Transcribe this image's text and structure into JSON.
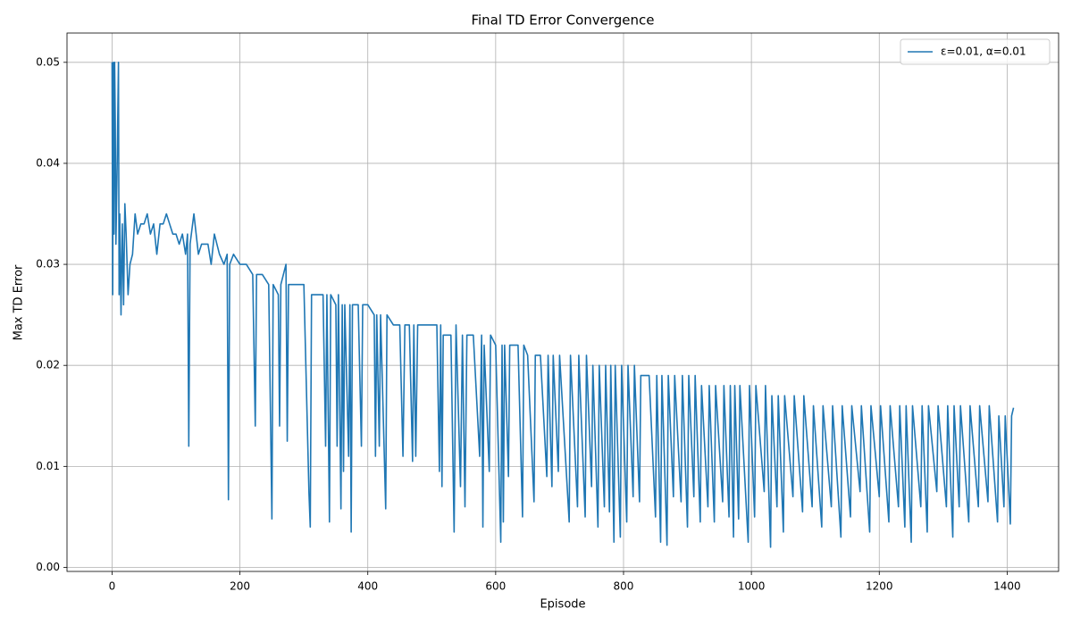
{
  "chart_data": {
    "type": "line",
    "title": "Final TD Error Convergence",
    "x_label": "Episode",
    "y_label": "Max TD Error",
    "xlim": [
      -70.5,
      1480.5
    ],
    "ylim": [
      -0.0004,
      0.0529
    ],
    "xticks": [
      0,
      200,
      400,
      600,
      800,
      1000,
      1200,
      1400
    ],
    "yticks": [
      {
        "value": 0,
        "label": "0.00"
      },
      0.01,
      0.02,
      0.03,
      0.04,
      0.05
    ],
    "grid": true,
    "legend": "upper right",
    "x": [
      0,
      1,
      2,
      3,
      4,
      5,
      6,
      8,
      10,
      11,
      12,
      14,
      16,
      18,
      20,
      22,
      25,
      28,
      32,
      36,
      40,
      45,
      50,
      55,
      60,
      65,
      70,
      75,
      80,
      85,
      90,
      95,
      100,
      105,
      110,
      115,
      118,
      120,
      122,
      128,
      135,
      140,
      150,
      155,
      160,
      168,
      175,
      180,
      182,
      184,
      190,
      200,
      210,
      220,
      224,
      226,
      235,
      245,
      250,
      252,
      260,
      262,
      264,
      272,
      274,
      276,
      285,
      295,
      300,
      308,
      310,
      312,
      320,
      330,
      334,
      336,
      340,
      342,
      350,
      352,
      354,
      358,
      360,
      362,
      364,
      370,
      372,
      374,
      376,
      385,
      390,
      392,
      400,
      410,
      412,
      414,
      418,
      420,
      428,
      430,
      440,
      450,
      455,
      458,
      465,
      470,
      472,
      475,
      478,
      490,
      500,
      508,
      512,
      514,
      516,
      518,
      530,
      535,
      538,
      545,
      548,
      552,
      555,
      565,
      575,
      578,
      580,
      582,
      590,
      592,
      600,
      608,
      610,
      612,
      614,
      620,
      622,
      635,
      642,
      644,
      650,
      660,
      662,
      670,
      680,
      682,
      688,
      690,
      698,
      700,
      715,
      717,
      728,
      730,
      740,
      742,
      750,
      752,
      760,
      762,
      770,
      772,
      778,
      780,
      785,
      787,
      795,
      797,
      805,
      807,
      815,
      817,
      825,
      827,
      840,
      850,
      852,
      858,
      860,
      868,
      870,
      878,
      880,
      890,
      892,
      900,
      902,
      910,
      912,
      920,
      922,
      932,
      934,
      942,
      944,
      955,
      957,
      965,
      967,
      972,
      974,
      980,
      982,
      995,
      997,
      1005,
      1007,
      1020,
      1022,
      1030,
      1032,
      1040,
      1042,
      1050,
      1052,
      1065,
      1067,
      1080,
      1082,
      1095,
      1097,
      1110,
      1112,
      1125,
      1127,
      1140,
      1142,
      1155,
      1157,
      1170,
      1172,
      1185,
      1187,
      1200,
      1202,
      1215,
      1217,
      1230,
      1232,
      1240,
      1242,
      1250,
      1252,
      1265,
      1267,
      1275,
      1277,
      1290,
      1292,
      1305,
      1307,
      1315,
      1317,
      1325,
      1327,
      1340,
      1342,
      1355,
      1357,
      1370,
      1372,
      1385,
      1387,
      1395,
      1397,
      1405,
      1407,
      1410
    ],
    "series": [
      {
        "name": "ε=0.01, α=0.01",
        "color": "#1f77b4",
        "values": [
          0.05,
          0.027,
          0.05,
          0.033,
          0.05,
          0.044,
          0.032,
          0.04,
          0.05,
          0.027,
          0.035,
          0.025,
          0.034,
          0.026,
          0.036,
          0.033,
          0.027,
          0.03,
          0.031,
          0.035,
          0.033,
          0.034,
          0.034,
          0.035,
          0.033,
          0.034,
          0.031,
          0.034,
          0.034,
          0.035,
          0.034,
          0.033,
          0.033,
          0.032,
          0.033,
          0.031,
          0.033,
          0.012,
          0.032,
          0.035,
          0.031,
          0.032,
          0.032,
          0.03,
          0.033,
          0.031,
          0.03,
          0.031,
          0.0067,
          0.03,
          0.031,
          0.03,
          0.03,
          0.029,
          0.014,
          0.029,
          0.029,
          0.028,
          0.0048,
          0.028,
          0.027,
          0.014,
          0.028,
          0.03,
          0.0125,
          0.028,
          0.028,
          0.028,
          0.028,
          0.0073,
          0.004,
          0.027,
          0.027,
          0.027,
          0.012,
          0.027,
          0.0045,
          0.027,
          0.026,
          0.012,
          0.027,
          0.0058,
          0.026,
          0.0095,
          0.026,
          0.011,
          0.026,
          0.0035,
          0.026,
          0.026,
          0.012,
          0.026,
          0.026,
          0.025,
          0.011,
          0.025,
          0.012,
          0.025,
          0.0058,
          0.025,
          0.024,
          0.024,
          0.011,
          0.024,
          0.024,
          0.0105,
          0.024,
          0.011,
          0.024,
          0.024,
          0.024,
          0.024,
          0.0095,
          0.024,
          0.008,
          0.023,
          0.023,
          0.0035,
          0.024,
          0.008,
          0.023,
          0.006,
          0.023,
          0.023,
          0.011,
          0.023,
          0.004,
          0.022,
          0.0095,
          0.023,
          0.022,
          0.0025,
          0.022,
          0.0045,
          0.022,
          0.009,
          0.022,
          0.022,
          0.005,
          0.022,
          0.021,
          0.0065,
          0.021,
          0.021,
          0.009,
          0.021,
          0.008,
          0.021,
          0.0095,
          0.021,
          0.0045,
          0.021,
          0.006,
          0.021,
          0.005,
          0.021,
          0.008,
          0.02,
          0.004,
          0.02,
          0.006,
          0.02,
          0.0055,
          0.02,
          0.0025,
          0.02,
          0.003,
          0.02,
          0.0045,
          0.02,
          0.007,
          0.02,
          0.0065,
          0.019,
          0.019,
          0.005,
          0.019,
          0.0025,
          0.019,
          0.0022,
          0.019,
          0.007,
          0.019,
          0.0065,
          0.019,
          0.004,
          0.019,
          0.007,
          0.019,
          0.0045,
          0.018,
          0.006,
          0.018,
          0.0045,
          0.018,
          0.0065,
          0.018,
          0.005,
          0.018,
          0.003,
          0.018,
          0.0048,
          0.018,
          0.0025,
          0.018,
          0.005,
          0.018,
          0.0075,
          0.018,
          0.002,
          0.017,
          0.006,
          0.017,
          0.0035,
          0.017,
          0.007,
          0.017,
          0.0055,
          0.017,
          0.006,
          0.016,
          0.004,
          0.016,
          0.006,
          0.016,
          0.003,
          0.016,
          0.005,
          0.016,
          0.0075,
          0.016,
          0.0035,
          0.016,
          0.007,
          0.016,
          0.0045,
          0.016,
          0.006,
          0.016,
          0.004,
          0.016,
          0.0025,
          0.016,
          0.006,
          0.016,
          0.0035,
          0.016,
          0.0075,
          0.016,
          0.006,
          0.016,
          0.003,
          0.016,
          0.006,
          0.016,
          0.0045,
          0.016,
          0.006,
          0.016,
          0.0065,
          0.016,
          0.0045,
          0.015,
          0.006,
          0.015,
          0.0043,
          0.015,
          0.0158
        ]
      }
    ]
  }
}
